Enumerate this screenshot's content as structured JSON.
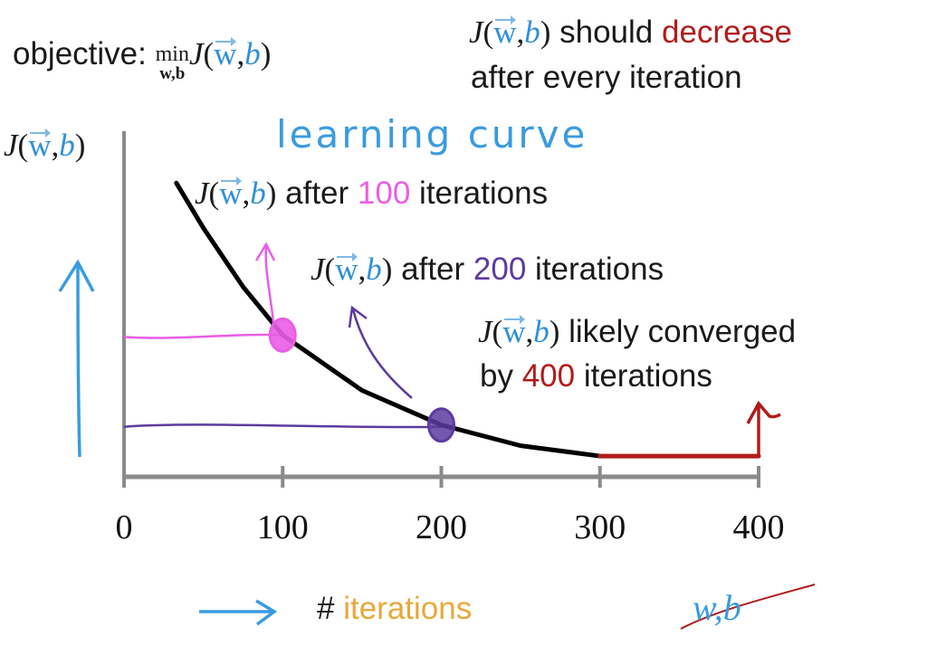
{
  "objective": {
    "label": "objective:",
    "min": "min",
    "min_sub": "w,b",
    "J": "J",
    "w": "w",
    "b": "b"
  },
  "note": {
    "J": "J",
    "w": "w",
    "b": "b",
    "line1": "should",
    "decrease": "decrease",
    "line2": "after every iteration"
  },
  "colors": {
    "pink": "#e95ee6",
    "purple": "#5c3b9f",
    "red": "#b01c1c",
    "blue": "#3a9be0",
    "orange": "#e8a83a",
    "axis": "#8a8a8a"
  },
  "annotations": {
    "a100": {
      "J": "J",
      "w": "w",
      "b": "b",
      "pre": "after",
      "num": "100",
      "post": "iterations"
    },
    "a200": {
      "J": "J",
      "w": "w",
      "b": "b",
      "pre": "after",
      "num": "200",
      "post": "iterations"
    },
    "a400": {
      "J": "J",
      "w": "w",
      "b": "b",
      "pre": "likely converged",
      "by": "by",
      "num": "400",
      "post": "iterations"
    }
  },
  "chart_data": {
    "type": "line",
    "title": "learning curve",
    "ylabel": {
      "J": "J",
      "w": "w",
      "b": "b"
    },
    "xlabel": {
      "hash": "#",
      "word": "iterations"
    },
    "crossed_label": "w,b",
    "xticks": [
      "0",
      "100",
      "200",
      "300",
      "400"
    ],
    "xlim": [
      0,
      400
    ],
    "ylim": [
      0,
      1
    ],
    "grid": false,
    "series": [
      {
        "x": [
          33,
          50,
          75,
          100,
          150,
          200,
          250,
          300
        ],
        "y": [
          0.85,
          0.72,
          0.55,
          0.41,
          0.25,
          0.15,
          0.09,
          0.06
        ],
        "color": "#000000"
      },
      {
        "x": [
          300,
          400
        ],
        "y": [
          0.06,
          0.06
        ],
        "color": "#b01c1c"
      }
    ],
    "highlights": [
      {
        "x": 100,
        "y": 0.41,
        "color": "#e95ee6"
      },
      {
        "x": 200,
        "y": 0.15,
        "color": "#5c3b9f"
      }
    ]
  }
}
